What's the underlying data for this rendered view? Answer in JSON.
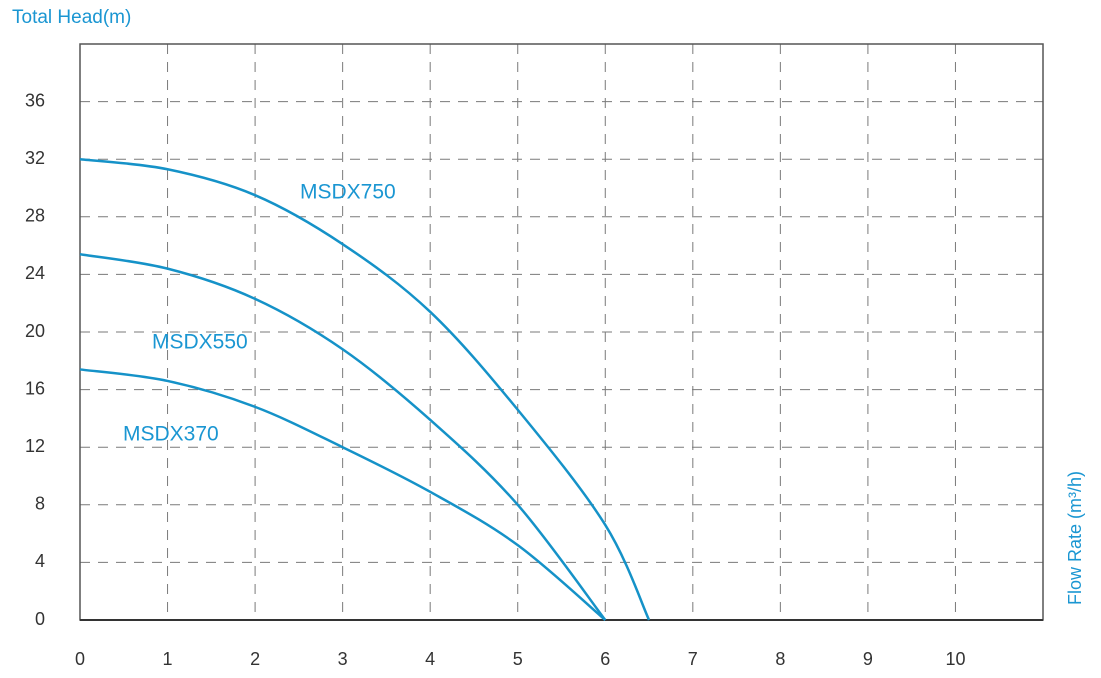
{
  "chart_data": {
    "type": "line",
    "y_label": "Total Head(m)",
    "x_label": "Flow Rate (m³/h)",
    "x": [
      0,
      1,
      2,
      3,
      4,
      5,
      6,
      6.5
    ],
    "series": [
      {
        "name": "MSDX750",
        "color": "#1592c8",
        "values": [
          32.0,
          31.3,
          29.5,
          26.1,
          21.4,
          14.6,
          6.6,
          0
        ]
      },
      {
        "name": "MSDX550",
        "color": "#1592c8",
        "values": [
          25.4,
          24.4,
          22.3,
          18.8,
          13.9,
          8.0,
          0,
          null
        ]
      },
      {
        "name": "MSDX370",
        "color": "#1592c8",
        "values": [
          17.4,
          16.6,
          14.8,
          12.0,
          8.9,
          5.2,
          0,
          null
        ]
      }
    ],
    "xlim": [
      0,
      11
    ],
    "ylim": [
      0,
      40
    ],
    "xticks": [
      0,
      1,
      2,
      3,
      4,
      5,
      6,
      7,
      8,
      9,
      10
    ],
    "yticks": [
      0,
      4,
      8,
      12,
      16,
      20,
      24,
      28,
      32,
      36
    ],
    "grid": true
  }
}
